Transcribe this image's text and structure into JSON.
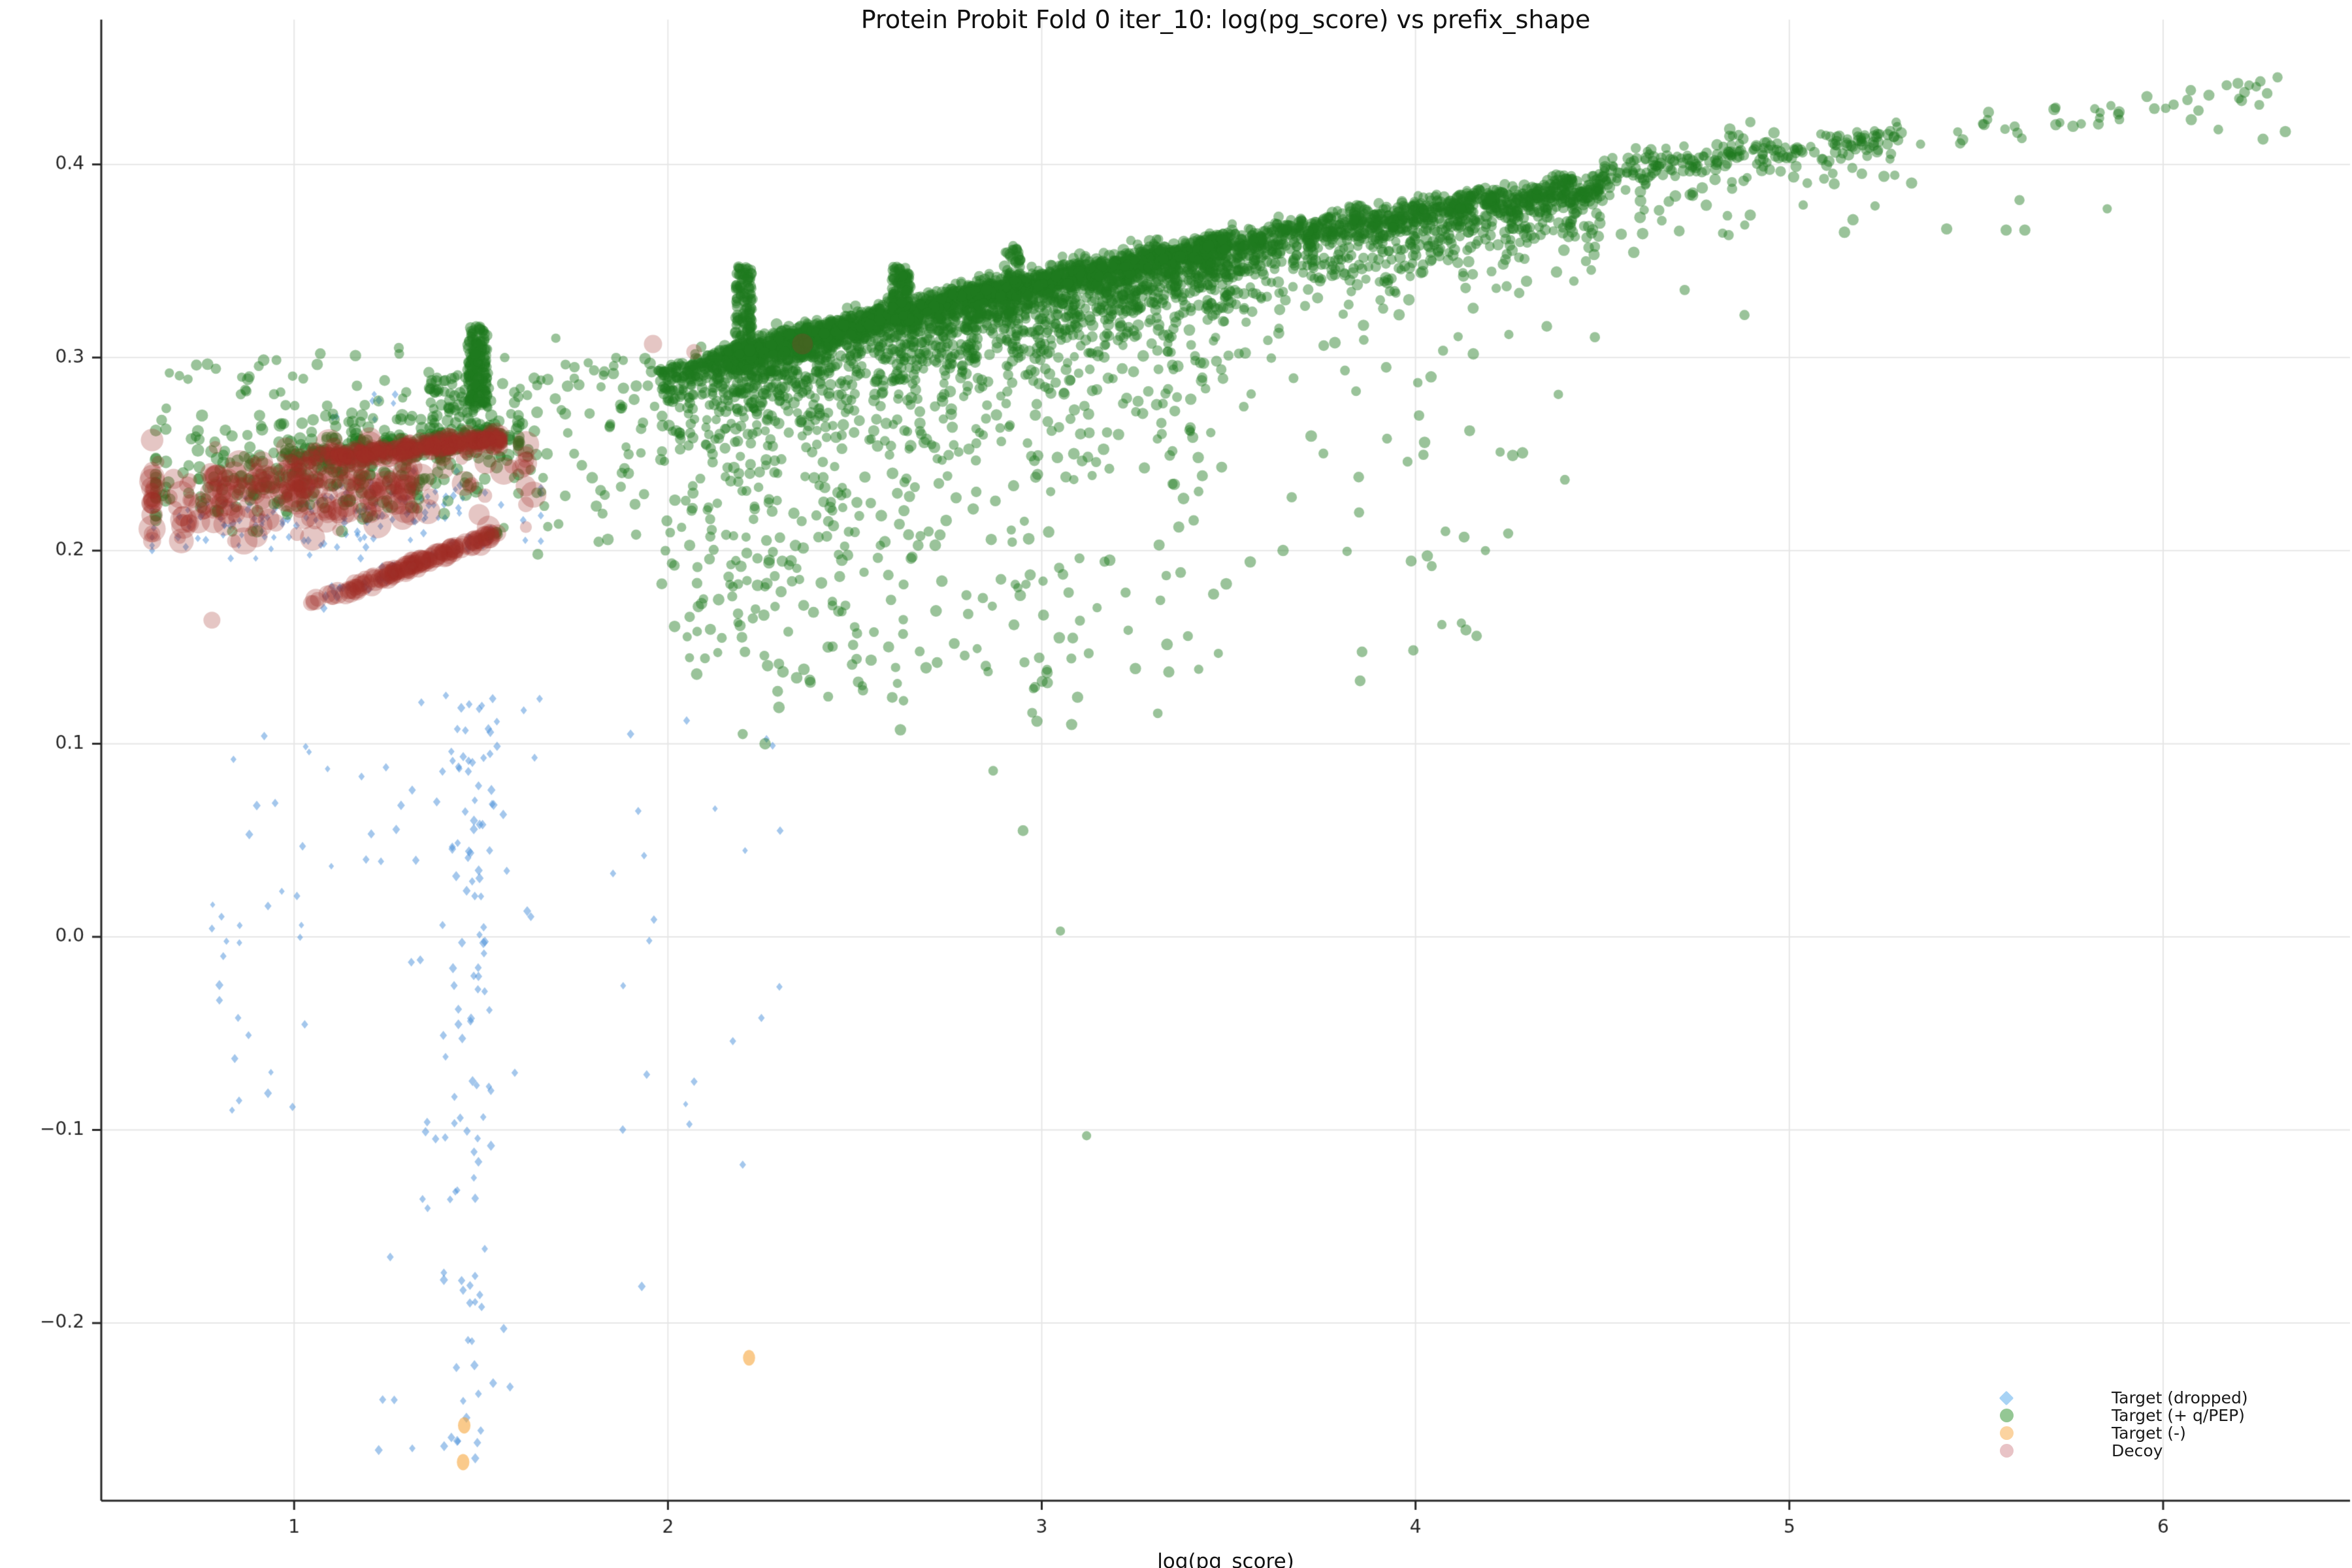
{
  "page": {
    "background": "#ffffff"
  },
  "colors": {
    "grid": "#e6e6e6",
    "axis": "#262626",
    "tick_text": "#262626",
    "title_text": "#111111"
  },
  "chart_data": {
    "type": "scatter",
    "title": "Protein Probit Fold 0 iter_10: log(pg_score) vs prefix_shape",
    "xlabel": "log(pg_score)",
    "ylabel": "",
    "xlim": [
      0.484,
      6.5
    ],
    "ylim": [
      -0.292,
      0.475
    ],
    "xticks": [
      1,
      2,
      3,
      4,
      5,
      6
    ],
    "yticks": [
      -0.2,
      -0.1,
      0.0,
      0.1,
      0.2,
      0.3,
      0.4
    ],
    "grid": true,
    "legend": {
      "position": "bottom-right",
      "entries": [
        {
          "label": "Target (dropped)",
          "marker": "diamond",
          "color": "#a8d3f5"
        },
        {
          "label": "Target (+ q/PEP)",
          "marker": "circle",
          "color": "#94c794"
        },
        {
          "label": "Target (-)",
          "marker": "circle",
          "color": "#fbd3a0"
        },
        {
          "label": "Decoy",
          "marker": "circle",
          "color": "#e8c3c6"
        }
      ]
    },
    "envelope": {
      "note": "upper edge of green band: y = a + b*ln(x)",
      "a": 0.205,
      "b": 0.127
    },
    "tooth_boundaries": [
      2.05,
      2.22,
      2.4,
      2.62,
      2.88,
      3.12,
      3.33,
      3.52,
      3.7,
      3.88,
      4.06,
      4.24,
      4.42,
      4.62,
      4.82,
      5.02
    ],
    "series": [
      {
        "name": "Target (dropped)",
        "marker": "diamond",
        "color": "rgba(74,144,217,0.5)",
        "clusters": [
          {
            "kind": "gauss",
            "n": 148,
            "cx": 1.08,
            "sx": 0.27,
            "xmin": 0.62,
            "xmax": 1.66,
            "cy": 0.2185,
            "sy": 0.0115,
            "ymin": 0.196,
            "ymax": 0.252,
            "tilt": 0.012,
            "size": [
              5,
              7
            ]
          },
          {
            "kind": "gauss",
            "n": 8,
            "cx": 1.2,
            "sx": 0.1,
            "xmin": 1.02,
            "xmax": 1.4,
            "cy": 0.276,
            "sy": 0.005,
            "ymin": 0.268,
            "ymax": 0.287,
            "tilt": 0,
            "size": [
              5,
              7
            ]
          },
          {
            "kind": "column",
            "n": 145,
            "cx": 1.475,
            "sx": 0.035,
            "xmin": 1.15,
            "xmax": 1.66,
            "ytop": 0.125,
            "yrange": 0.4,
            "pow": 1.25,
            "size": [
              6,
              8
            ]
          },
          {
            "kind": "uniform",
            "n": 26,
            "xmin": 0.78,
            "xmax": 1.12,
            "ymin": -0.09,
            "ymax": 0.105,
            "ypow": 1,
            "size": [
              5,
              7
            ]
          },
          {
            "kind": "uniform",
            "n": 14,
            "xmin": 1.85,
            "xmax": 2.35,
            "ymin": -0.12,
            "ymax": 0.115,
            "ypow": 1,
            "size": [
              5,
              7
            ]
          },
          {
            "kind": "line",
            "n": 38,
            "x0": 1.06,
            "y0": 0.174,
            "x1": 1.53,
            "y1": 0.2075,
            "jitter": 0.0025,
            "bias": 1,
            "size": [
              6,
              8
            ]
          },
          {
            "kind": "points",
            "size": [
              6,
              8
            ],
            "pts": [
              [
                1.448,
                -0.178
              ],
              [
                1.452,
                -0.183
              ],
              [
                1.93,
                -0.181
              ],
              [
                2.2,
                -0.118
              ],
              [
                0.93,
                -0.081
              ],
              [
                0.85,
                -0.042
              ],
              [
                0.8,
                -0.025
              ],
              [
                0.92,
                0.104
              ],
              [
                0.9,
                0.068
              ],
              [
                0.88,
                0.053
              ],
              [
                1.9,
                0.105
              ],
              [
                2.05,
                0.112
              ],
              [
                2.28,
                0.099
              ],
              [
                2.3,
                0.055
              ],
              [
                1.95,
                -0.002
              ],
              [
                2.25,
                -0.042
              ],
              [
                2.07,
                -0.075
              ],
              [
                0.93,
                0.016
              ]
            ]
          }
        ]
      },
      {
        "name": "Target (+ q/PEP)",
        "marker": "circle",
        "color": "rgba(31,122,31,0.45)",
        "clusters": [
          {
            "kind": "band",
            "n": 4900,
            "size": [
              7,
              9
            ]
          },
          {
            "kind": "chain",
            "n": 260,
            "x0": 4.5,
            "xspan": 0.8,
            "xpow": 1.2,
            "size": [
              7,
              9
            ]
          },
          {
            "kind": "sparse_right",
            "n": 50,
            "xmin": 5.05,
            "xmax": 6.35,
            "size": [
              7,
              9
            ]
          },
          {
            "kind": "spike",
            "n": 170,
            "xmin": 1.465,
            "xmax": 1.515,
            "ymin": 0.274,
            "ymax": 0.316,
            "size": [
              7,
              9
            ]
          },
          {
            "kind": "spike",
            "n": 150,
            "xmin": 2.18,
            "xmax": 2.226,
            "ymin": 0.3,
            "ymax": 0.347,
            "size": [
              7,
              9
            ]
          },
          {
            "kind": "spike",
            "n": 120,
            "xmin": 2.6,
            "xmax": 2.648,
            "ymin": 0.318,
            "ymax": 0.347,
            "size": [
              7,
              9
            ]
          },
          {
            "kind": "spike",
            "n": 45,
            "xmin": 2.9,
            "xmax": 2.945,
            "ymin": 0.336,
            "ymax": 0.358,
            "size": [
              7,
              9
            ]
          },
          {
            "kind": "gauss",
            "n": 360,
            "cx": 1.12,
            "sx": 0.26,
            "xmin": 0.63,
            "xmax": 1.6,
            "cy": 0.243,
            "sy": 0.013,
            "ymin": 0.21,
            "ymax": 0.27,
            "tilt": 0.02,
            "size": [
              8,
              10
            ]
          },
          {
            "kind": "uniform",
            "n": 55,
            "xmin": 0.65,
            "xmax": 1.45,
            "ymin": 0.258,
            "ymax": 0.302,
            "ypow": 1,
            "size": [
              7,
              9
            ]
          },
          {
            "kind": "uniform",
            "n": 80,
            "xmin": 1.36,
            "xmax": 1.53,
            "ymin": 0.248,
            "ymax": 0.292,
            "ypow": 0.8,
            "size": [
              7,
              9
            ]
          },
          {
            "kind": "uniform",
            "n": 90,
            "xmin": 1.55,
            "xmax": 1.98,
            "ymin": 0.19,
            "ymax": 0.3,
            "ypow": 0.55,
            "size": [
              7,
              9
            ]
          },
          {
            "kind": "line",
            "n": 220,
            "x0": 0.97,
            "y0": 0.2482,
            "x1": 1.56,
            "y1": 0.2602,
            "jitter": 0.0028,
            "bias": 0.75,
            "size": [
              7,
              9
            ]
          },
          {
            "kind": "tail",
            "n": 420,
            "size": [
              7,
              9
            ]
          },
          {
            "kind": "line",
            "n": 8,
            "x0": 1.5,
            "y0": 0.2065,
            "x1": 1.545,
            "y1": 0.2095,
            "jitter": 0.001,
            "bias": 1,
            "size": [
              7,
              9
            ]
          },
          {
            "kind": "points",
            "size": [
              7,
              9
            ],
            "pts": [
              [
                2.87,
                0.086
              ],
              [
                2.95,
                0.055
              ],
              [
                3.05,
                0.003
              ],
              [
                3.12,
                -0.103
              ],
              [
                2.2,
                0.105
              ],
              [
                2.26,
                0.1
              ],
              [
                2.52,
                0.13
              ],
              [
                2.6,
                0.124
              ],
              [
                3.08,
                0.11
              ],
              [
                5.58,
                0.366
              ],
              [
                5.63,
                0.366
              ],
              [
                5.83,
                0.424
              ],
              [
                5.88,
                0.426
              ],
              [
                6.17,
                0.441
              ],
              [
                6.2,
                0.442
              ],
              [
                6.23,
                0.441
              ],
              [
                6.26,
                0.443
              ],
              [
                6.21,
                0.433
              ],
              [
                4.08,
                0.21
              ],
              [
                4.13,
                0.207
              ],
              [
                1.07,
                0.302
              ],
              [
                0.88,
                0.29
              ],
              [
                1.28,
                0.305
              ],
              [
                1.7,
                0.31
              ],
              [
                1.75,
                0.295
              ],
              [
                4.88,
                0.322
              ],
              [
                4.72,
                0.335
              ]
            ]
          }
        ]
      },
      {
        "name": "Target (-)",
        "marker": "ellipse",
        "color": "rgba(247,166,62,0.6)",
        "clusters": [
          {
            "kind": "points",
            "size": [
              9,
              10
            ],
            "pts": [
              [
                1.455,
                -0.253
              ],
              [
                1.452,
                -0.272
              ],
              [
                2.217,
                -0.218
              ]
            ]
          }
        ]
      },
      {
        "name": "Decoy",
        "marker": "circle",
        "color": "rgba(160,45,38,0.27)",
        "clusters": [
          {
            "kind": "gauss",
            "n": 250,
            "cx": 1.03,
            "sx": 0.29,
            "xmin": 0.62,
            "xmax": 1.62,
            "cy": 0.2305,
            "sy": 0.0105,
            "ymin": 0.205,
            "ymax": 0.258,
            "tilt": 0.018,
            "size": [
              9,
              22
            ]
          },
          {
            "kind": "line",
            "n": 290,
            "x0": 0.95,
            "y0": 0.2455,
            "x1": 1.56,
            "y1": 0.258,
            "jitter": 0.0022,
            "bias": 0.6,
            "size": [
              9,
              14
            ]
          },
          {
            "kind": "line",
            "n": 125,
            "x0": 1.045,
            "y0": 0.1725,
            "x1": 1.545,
            "y1": 0.209,
            "jitter": 0.0012,
            "bias": 0.85,
            "size": [
              11,
              17
            ]
          },
          {
            "kind": "points",
            "sizes": [
              13,
              20,
              14,
              12,
              16,
              18
            ],
            "pts": [
              [
                0.78,
                0.164
              ],
              [
                1.64,
                0.229
              ],
              [
                1.96,
                0.307
              ],
              [
                2.07,
                0.303
              ],
              [
                2.36,
                0.307
              ],
              [
                1.52,
                0.212
              ]
            ]
          }
        ]
      }
    ]
  }
}
